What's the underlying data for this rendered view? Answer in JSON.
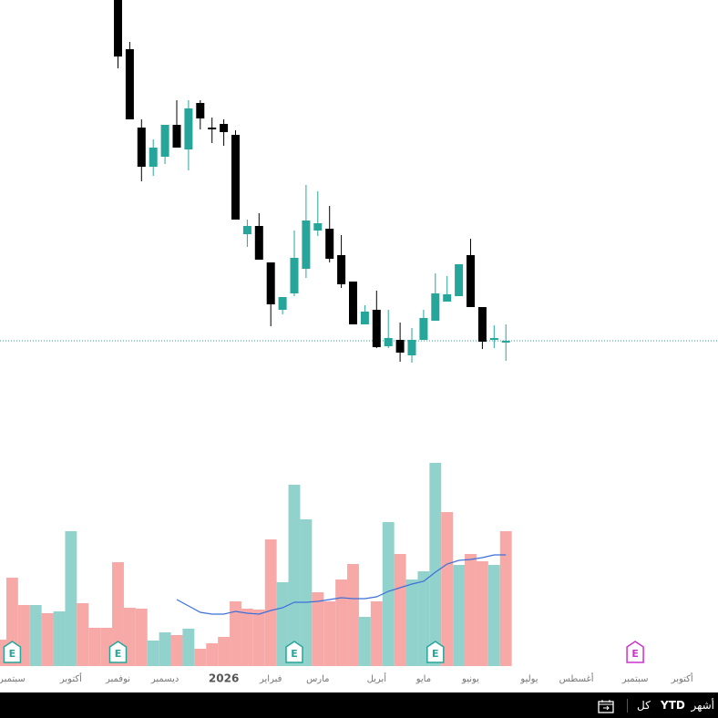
{
  "chart_data": {
    "type": "candlestick",
    "ylim": [
      0,
      400
    ],
    "volume_lim": [
      0,
      240
    ],
    "up_color": "#26a69a",
    "down_color": "#000000",
    "last_price": 26,
    "last_price_color": "#26a69a",
    "open": [
      null,
      null,
      null,
      null,
      null,
      null,
      null,
      null,
      null,
      null,
      410,
      346,
      260,
      217,
      228,
      263,
      236,
      287,
      260,
      264,
      252,
      143,
      152,
      112,
      60,
      78,
      105,
      147,
      149,
      120,
      91,
      44,
      60,
      20,
      27,
      10,
      27,
      48,
      69,
      75,
      120,
      63,
      29,
      24
    ],
    "high": [
      null,
      null,
      null,
      null,
      null,
      null,
      null,
      null,
      null,
      null,
      420,
      354,
      269,
      247,
      263,
      290,
      290,
      290,
      271,
      269,
      257,
      159,
      166,
      112,
      74,
      147,
      197,
      190,
      174,
      142,
      91,
      65,
      81,
      60,
      46,
      40,
      60,
      100,
      97,
      110,
      138,
      63,
      43,
      44
    ],
    "low": [
      null,
      null,
      null,
      null,
      null,
      null,
      null,
      null,
      null,
      null,
      325,
      269,
      201,
      207,
      220,
      238,
      213,
      258,
      243,
      240,
      159,
      129,
      115,
      42,
      55,
      75,
      95,
      141,
      112,
      84,
      44,
      44,
      18,
      18,
      3,
      2,
      27,
      48,
      69,
      75,
      63,
      17,
      18,
      4
    ],
    "close": [
      null,
      null,
      null,
      null,
      null,
      null,
      null,
      null,
      null,
      null,
      338,
      269,
      217,
      238,
      263,
      238,
      281,
      270,
      258,
      255,
      159,
      152,
      115,
      66,
      74,
      117,
      158,
      155,
      116,
      88,
      44,
      58,
      19,
      29,
      13,
      27,
      51,
      78,
      77,
      110,
      63,
      25,
      29,
      26
    ],
    "volume": [
      29,
      97,
      67,
      67,
      58,
      60,
      148,
      69,
      42,
      42,
      114,
      64,
      63,
      28,
      37,
      34,
      41,
      19,
      25,
      32,
      71,
      63,
      62,
      139,
      92,
      199,
      161,
      81,
      71,
      95,
      112,
      54,
      71,
      158,
      123,
      95,
      104,
      223,
      169,
      111,
      123,
      115,
      111,
      148
    ],
    "volume_colors": [
      "#f7a9a7",
      "#f7a9a7",
      "#f7a9a7",
      "#92d2cc",
      "#f7a9a7",
      "#92d2cc",
      "#92d2cc",
      "#f7a9a7",
      "#f7a9a7",
      "#f7a9a7",
      "#f7a9a7",
      "#f7a9a7",
      "#f7a9a7",
      "#92d2cc",
      "#92d2cc",
      "#f7a9a7",
      "#92d2cc",
      "#f7a9a7",
      "#f7a9a7",
      "#f7a9a7",
      "#f7a9a7",
      "#f7a9a7",
      "#f7a9a7",
      "#f7a9a7",
      "#92d2cc",
      "#92d2cc",
      "#92d2cc",
      "#f7a9a7",
      "#f7a9a7",
      "#f7a9a7",
      "#f7a9a7",
      "#92d2cc",
      "#f7a9a7",
      "#92d2cc",
      "#f7a9a7",
      "#92d2cc",
      "#92d2cc",
      "#92d2cc",
      "#f7a9a7",
      "#92d2cc",
      "#f7a9a7",
      "#f7a9a7",
      "#92d2cc",
      "#f7a9a7"
    ],
    "volume_ma": [
      null,
      null,
      null,
      null,
      null,
      null,
      null,
      null,
      null,
      null,
      null,
      null,
      null,
      null,
      null,
      73,
      66,
      59,
      57,
      57,
      60,
      58,
      57,
      61,
      64,
      70,
      70,
      71,
      73,
      75,
      74,
      74,
      76,
      82,
      86,
      90,
      93,
      103,
      112,
      116,
      117,
      119,
      122,
      122
    ],
    "volume_ma_color": "#3d6fd9",
    "xticks": [
      {
        "value": 1,
        "label": "سبتمبر"
      },
      {
        "value": 6,
        "label": "أكتوبر"
      },
      {
        "value": 10,
        "label": "نوفمبر"
      },
      {
        "value": 14,
        "label": "ديسمبر"
      },
      {
        "value": 19,
        "label": "2026"
      },
      {
        "value": 23,
        "label": "فبراير"
      },
      {
        "value": 27,
        "label": "مارس"
      },
      {
        "value": 32,
        "label": "أبريل"
      },
      {
        "value": 36,
        "label": "مايو"
      },
      {
        "value": 40,
        "label": "يونيو"
      },
      {
        "value": 45,
        "label": "يوليو"
      },
      {
        "value": 49,
        "label": "أغسطس"
      },
      {
        "value": 54,
        "label": "سبتمبر"
      },
      {
        "value": 58,
        "label": "أكتوبر"
      }
    ],
    "events": [
      {
        "index": 1,
        "label": "E",
        "color": "#26a69a"
      },
      {
        "index": 10,
        "label": "E",
        "color": "#26a69a"
      },
      {
        "index": 25,
        "label": "E",
        "color": "#26a69a"
      },
      {
        "index": 37,
        "label": "E",
        "color": "#26a69a"
      },
      {
        "index": 54,
        "label": "E",
        "color": "#cc33cc"
      }
    ]
  },
  "toolbar": {
    "months": "أشهر",
    "ytd": "YTD",
    "all": "كل"
  }
}
